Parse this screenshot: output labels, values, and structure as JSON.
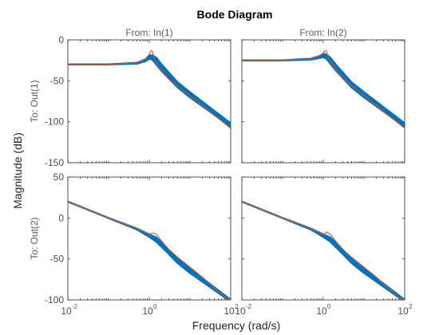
{
  "chart_data": {
    "type": "line",
    "title": "Bode Diagram",
    "xlabel": "Frequency  (rad/s)",
    "ylabel": "Magnitude (dB)",
    "x_scale": "log",
    "xlim": [
      0.01,
      100
    ],
    "x_ticks": [
      "10",
      "10",
      "10"
    ],
    "x_tick_exponents": [
      "-2",
      "0",
      "2"
    ],
    "grid": false,
    "columns": [
      "From: In(1)",
      "From: In(2)"
    ],
    "rows": [
      "To: Out(1)",
      "To: Out(2)"
    ],
    "row_ylims": [
      [
        -150,
        0
      ],
      [
        -100,
        50
      ]
    ],
    "row_yticks": [
      [
        "0",
        "-50",
        "-100",
        "-150"
      ],
      [
        "50",
        "0",
        "-50",
        "-100"
      ]
    ],
    "colors": {
      "nominal": "#d95319",
      "samples": "#0072bd"
    },
    "panels": [
      {
        "row": 0,
        "col": 0,
        "nominal": {
          "x": [
            0.01,
            0.1,
            0.5,
            0.8,
            1.0,
            1.1,
            1.2,
            1.3,
            1.5,
            2,
            3,
            5,
            10,
            20,
            50,
            100
          ],
          "y": [
            -30,
            -30,
            -28,
            -24,
            -18,
            -13,
            -14,
            -20,
            -28,
            -38,
            -48,
            -56,
            -68,
            -80,
            -96,
            -108
          ]
        },
        "samples_band": {
          "x": [
            0.01,
            0.1,
            0.5,
            0.8,
            1.0,
            1.2,
            1.5,
            2,
            5,
            10,
            100
          ],
          "y_upper": [
            -30,
            -30,
            -28,
            -24,
            -19,
            -19,
            -22,
            -30,
            -52,
            -64,
            -102
          ],
          "y_lower": [
            -30,
            -30,
            -29,
            -26,
            -23,
            -24,
            -30,
            -38,
            -58,
            -70,
            -106
          ]
        }
      },
      {
        "row": 0,
        "col": 1,
        "nominal": {
          "x": [
            0.01,
            0.1,
            0.5,
            0.8,
            1.0,
            1.1,
            1.2,
            1.3,
            1.5,
            2,
            3,
            5,
            10,
            20,
            50,
            100
          ],
          "y": [
            -25,
            -25,
            -23,
            -20,
            -16,
            -13,
            -14,
            -20,
            -26,
            -36,
            -46,
            -56,
            -68,
            -80,
            -96,
            -108
          ]
        },
        "samples_band": {
          "x": [
            0.01,
            0.1,
            0.5,
            0.8,
            1.0,
            1.2,
            1.5,
            2,
            5,
            10,
            100
          ],
          "y_upper": [
            -25,
            -25,
            -23,
            -20,
            -17,
            -18,
            -22,
            -30,
            -52,
            -64,
            -102
          ],
          "y_lower": [
            -25,
            -25,
            -24,
            -22,
            -21,
            -23,
            -29,
            -37,
            -58,
            -70,
            -106
          ]
        }
      },
      {
        "row": 1,
        "col": 0,
        "nominal": {
          "x": [
            0.01,
            0.1,
            0.5,
            1.0,
            1.2,
            1.5,
            2,
            3,
            5,
            10,
            20,
            50,
            100
          ],
          "y": [
            20,
            0,
            -13,
            -20,
            -18,
            -20,
            -28,
            -38,
            -48,
            -60,
            -72,
            -90,
            -101
          ]
        },
        "samples_band": {
          "x": [
            0.01,
            0.1,
            0.5,
            1.0,
            1.5,
            2,
            5,
            10,
            100
          ],
          "y_upper": [
            20,
            0,
            -13,
            -20,
            -24,
            -30,
            -50,
            -62,
            -100
          ],
          "y_lower": [
            20,
            0,
            -14,
            -23,
            -29,
            -35,
            -55,
            -67,
            -102
          ]
        }
      },
      {
        "row": 1,
        "col": 1,
        "nominal": {
          "x": [
            0.01,
            0.1,
            0.5,
            1.0,
            1.2,
            1.5,
            2,
            3,
            5,
            10,
            20,
            50,
            100
          ],
          "y": [
            20,
            0,
            -13,
            -21,
            -17,
            -20,
            -28,
            -38,
            -48,
            -60,
            -72,
            -90,
            -101
          ]
        },
        "samples_band": {
          "x": [
            0.01,
            0.1,
            0.5,
            1.0,
            1.5,
            2,
            5,
            10,
            100
          ],
          "y_upper": [
            20,
            0,
            -13,
            -20,
            -24,
            -30,
            -50,
            -62,
            -100
          ],
          "y_lower": [
            20,
            0,
            -14,
            -23,
            -29,
            -35,
            -55,
            -67,
            -102
          ]
        }
      }
    ]
  }
}
